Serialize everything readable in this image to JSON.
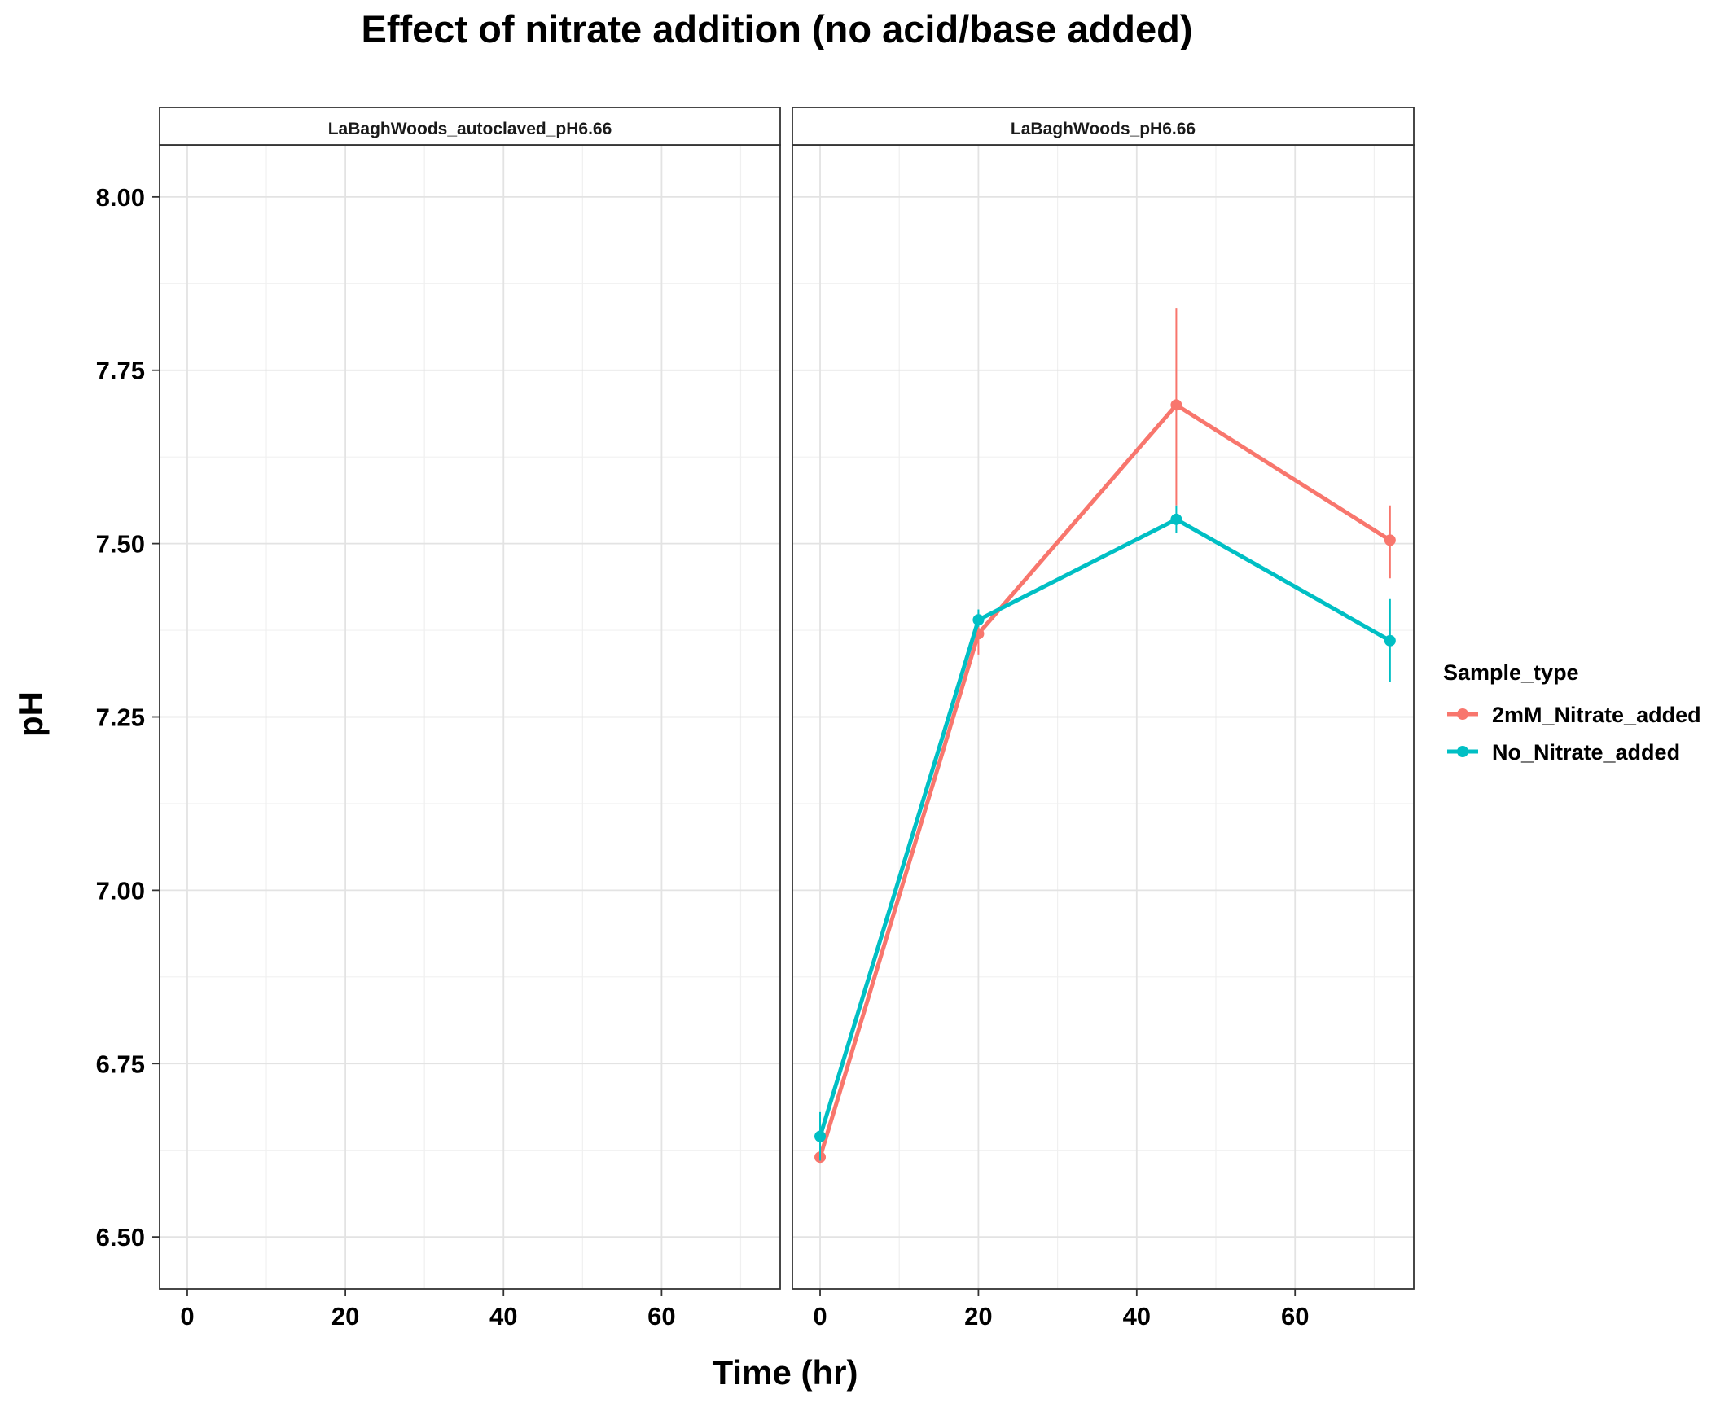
{
  "chart_data": {
    "type": "line",
    "title": "Effect of nitrate addition (no acid/base added)",
    "xlabel": "Time (hr)",
    "ylabel": "pH",
    "xlim": [
      -3.5,
      75
    ],
    "ylim": [
      6.425,
      8.075
    ],
    "x_ticks": [
      0,
      20,
      40,
      60
    ],
    "y_ticks": [
      6.5,
      6.75,
      7.0,
      7.25,
      7.5,
      7.75,
      8.0
    ],
    "y_tick_labels": [
      "6.50",
      "6.75",
      "7.00",
      "7.25",
      "7.50",
      "7.75",
      "8.00"
    ],
    "grid": true,
    "legend": {
      "title": "Sample_type",
      "position": "right"
    },
    "facets": [
      {
        "label": "LaBaghWoods_autoclaved_pH6.66",
        "series": []
      },
      {
        "label": "LaBaghWoods_pH6.66",
        "series": [
          {
            "name": "2mM_Nitrate_added",
            "color": "#F8766D",
            "x": [
              0,
              20,
              45,
              72
            ],
            "y": [
              6.615,
              7.37,
              7.7,
              7.505
            ],
            "err_low": [
              6.61,
              7.34,
              7.555,
              7.45
            ],
            "err_high": [
              6.62,
              7.4,
              7.84,
              7.555
            ]
          },
          {
            "name": "No_Nitrate_added",
            "color": "#00BFC4",
            "x": [
              0,
              20,
              45,
              72
            ],
            "y": [
              6.645,
              7.39,
              7.535,
              7.36
            ],
            "err_low": [
              6.61,
              7.38,
              7.515,
              7.3
            ],
            "err_high": [
              6.68,
              7.405,
              7.555,
              7.42
            ]
          }
        ]
      }
    ]
  }
}
